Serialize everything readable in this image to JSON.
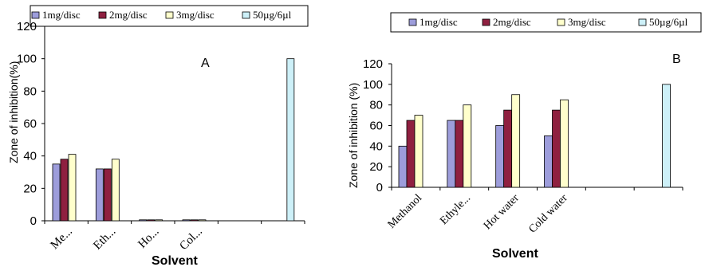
{
  "chart_data": [
    {
      "type": "bar",
      "panel": "A",
      "categories": [
        "Me...",
        "Eth...",
        "Ho...",
        "Col...",
        "",
        ""
      ],
      "series": [
        {
          "name": "1mg/disc",
          "values": [
            35,
            32,
            0,
            0,
            null,
            null
          ]
        },
        {
          "name": "2mg/disc",
          "values": [
            38,
            32,
            0,
            0,
            null,
            null
          ]
        },
        {
          "name": "3mg/disc",
          "values": [
            41,
            38,
            0,
            0,
            null,
            null
          ]
        },
        {
          "name": "50µg/6µl",
          "values": [
            null,
            null,
            null,
            null,
            null,
            100
          ]
        }
      ],
      "xlabel": "Solvent",
      "ylabel": "Zone of inhibition(%)",
      "ylim": [
        0,
        120
      ],
      "yticks": [
        "0",
        "20",
        "40",
        "60",
        "80",
        "100",
        "120"
      ],
      "legend_position": "top",
      "grid": false
    },
    {
      "type": "bar",
      "panel": "B",
      "categories": [
        "Methanol",
        "Ethyle...",
        "Hot water",
        "Cold water",
        "",
        ""
      ],
      "series": [
        {
          "name": "1mg/disc",
          "values": [
            40,
            65,
            60,
            50,
            null,
            null
          ]
        },
        {
          "name": "2mg/disc",
          "values": [
            65,
            65,
            75,
            75,
            null,
            null
          ]
        },
        {
          "name": "3mg/disc",
          "values": [
            70,
            80,
            90,
            85,
            null,
            null
          ]
        },
        {
          "name": "50µg/6µl",
          "values": [
            null,
            null,
            null,
            null,
            null,
            100
          ]
        }
      ],
      "xlabel": "Solvent",
      "ylabel": "Zone of inhibition (%)",
      "ylim": [
        0,
        120
      ],
      "yticks": [
        "0",
        "20",
        "40",
        "60",
        "80",
        "100",
        "120"
      ],
      "legend_position": "top",
      "grid": false
    }
  ],
  "colors": {
    "series": [
      "#9d9ddb",
      "#8f2040",
      "#ffffcc",
      "#cdf0f8"
    ],
    "outline": "#000000"
  }
}
